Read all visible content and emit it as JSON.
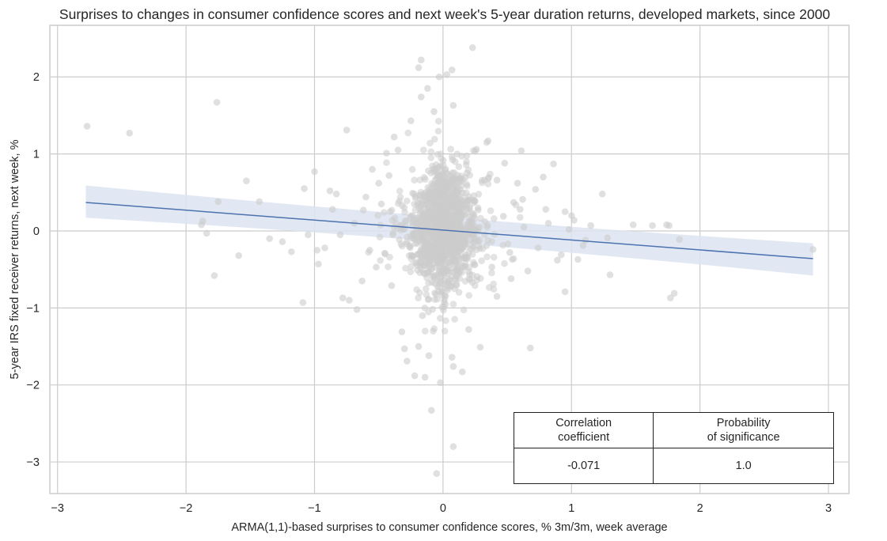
{
  "chart_data": {
    "type": "scatter",
    "title": "Surprises to changes in consumer confidence scores and next week's 5-year duration returns, developed markets, since 2000",
    "xlabel": "ARMA(1,1)-based surprises to consumer confidence scores, % 3m/3m, week average",
    "ylabel": "5-year IRS fixed receiver returns, next week, %",
    "xlim": [
      -3.06,
      3.16
    ],
    "ylim": [
      -3.41,
      2.67
    ],
    "xticks": [
      -3,
      -2,
      -1,
      0,
      1,
      2,
      3
    ],
    "xtick_labels": [
      "−3",
      "−2",
      "−1",
      "0",
      "1",
      "2",
      "3"
    ],
    "yticks": [
      -3,
      -2,
      -1,
      0,
      1,
      2
    ],
    "ytick_labels": [
      "−3",
      "−2",
      "−1",
      "0",
      "1",
      "2"
    ],
    "grid": true,
    "colors": {
      "points": "#cccccc",
      "regression_line": "#4c72b0",
      "confidence_band": "#dde4f1",
      "grid": "#cccccc",
      "frame": "#cccccc"
    },
    "regression": {
      "x_range": [
        -2.78,
        2.88
      ],
      "y_at_x_start": 0.37,
      "y_at_x_end": -0.36,
      "ci_at_x_start": [
        0.17,
        0.59
      ],
      "ci_at_x_end": [
        -0.58,
        -0.16
      ]
    },
    "dense_cluster": {
      "description": "approx. 1,300 weekly observations concentrated around x=0",
      "count": 1300,
      "x_center": 0.0,
      "x_spread": 0.09,
      "y_center": 0.05,
      "y_spread": 0.42
    },
    "outlier_points": [
      {
        "x": -2.77,
        "y": 1.36
      },
      {
        "x": -2.44,
        "y": 1.27
      },
      {
        "x": -1.76,
        "y": 1.67
      },
      {
        "x": -1.53,
        "y": 0.65
      },
      {
        "x": -1.75,
        "y": 0.38
      },
      {
        "x": -1.87,
        "y": 0.13
      },
      {
        "x": -1.84,
        "y": -0.03
      },
      {
        "x": -1.78,
        "y": -0.58
      },
      {
        "x": -1.59,
        "y": -0.32
      },
      {
        "x": -1.88,
        "y": 0.08
      },
      {
        "x": -1.43,
        "y": 0.38
      },
      {
        "x": -1.35,
        "y": -0.1
      },
      {
        "x": -1.25,
        "y": -0.14
      },
      {
        "x": -1.18,
        "y": -0.27
      },
      {
        "x": -1.09,
        "y": -0.93
      },
      {
        "x": -1.08,
        "y": 0.55
      },
      {
        "x": -1.0,
        "y": 0.77
      },
      {
        "x": -0.98,
        "y": -0.25
      },
      {
        "x": -0.97,
        "y": -0.43
      },
      {
        "x": -1.05,
        "y": -0.05
      },
      {
        "x": -0.92,
        "y": -0.22
      },
      {
        "x": -0.88,
        "y": 0.52
      },
      {
        "x": -0.83,
        "y": 0.48
      },
      {
        "x": -0.78,
        "y": -0.87
      },
      {
        "x": -0.73,
        "y": -0.9
      },
      {
        "x": -0.75,
        "y": 1.31
      },
      {
        "x": -0.67,
        "y": -1.02
      },
      {
        "x": -0.62,
        "y": 0.27
      },
      {
        "x": -0.6,
        "y": 0.44
      },
      {
        "x": -0.55,
        "y": 0.8
      },
      {
        "x": -0.5,
        "y": 0.62
      },
      {
        "x": -0.45,
        "y": -0.3
      },
      {
        "x": -0.44,
        "y": 1.01
      },
      {
        "x": -0.38,
        "y": 1.22
      },
      {
        "x": -0.35,
        "y": 1.05
      },
      {
        "x": -0.4,
        "y": -0.71
      },
      {
        "x": -0.32,
        "y": -1.31
      },
      {
        "x": -0.3,
        "y": -1.53
      },
      {
        "x": -0.28,
        "y": -1.69
      },
      {
        "x": -0.25,
        "y": 1.43
      },
      {
        "x": -0.22,
        "y": -1.88
      },
      {
        "x": -0.19,
        "y": -1.5
      },
      {
        "x": -0.17,
        "y": 1.74
      },
      {
        "x": -0.16,
        "y": -1.1
      },
      {
        "x": -0.14,
        "y": -1.9
      },
      {
        "x": -0.12,
        "y": 1.85
      },
      {
        "x": -0.11,
        "y": -1.62
      },
      {
        "x": -0.09,
        "y": -2.33
      },
      {
        "x": -0.07,
        "y": 1.55
      },
      {
        "x": -0.03,
        "y": 2.0
      },
      {
        "x": -0.02,
        "y": -1.97
      },
      {
        "x": -0.05,
        "y": -3.15
      },
      {
        "x": -0.19,
        "y": 2.12
      },
      {
        "x": -0.17,
        "y": 2.22
      },
      {
        "x": 0.03,
        "y": 2.03
      },
      {
        "x": 0.07,
        "y": 2.09
      },
      {
        "x": 0.23,
        "y": 2.38
      },
      {
        "x": 0.08,
        "y": 1.63
      },
      {
        "x": 0.07,
        "y": -1.64
      },
      {
        "x": 0.08,
        "y": -2.8
      },
      {
        "x": 0.08,
        "y": -1.76
      },
      {
        "x": 0.15,
        "y": -1.83
      },
      {
        "x": 0.2,
        "y": -1.28
      },
      {
        "x": 0.29,
        "y": -1.51
      },
      {
        "x": 0.26,
        "y": 1.06
      },
      {
        "x": 0.35,
        "y": 1.17
      },
      {
        "x": 0.42,
        "y": 0.66
      },
      {
        "x": 0.48,
        "y": 0.88
      },
      {
        "x": 0.53,
        "y": -0.62
      },
      {
        "x": 0.55,
        "y": 0.37
      },
      {
        "x": 0.6,
        "y": 0.28
      },
      {
        "x": 0.63,
        "y": 0.05
      },
      {
        "x": 0.62,
        "y": 0.41
      },
      {
        "x": 0.66,
        "y": -0.52
      },
      {
        "x": 0.68,
        "y": -1.52
      },
      {
        "x": 0.72,
        "y": 0.54
      },
      {
        "x": 0.74,
        "y": -0.22
      },
      {
        "x": 0.78,
        "y": 0.7
      },
      {
        "x": 0.8,
        "y": 0.28
      },
      {
        "x": 0.82,
        "y": 0.1
      },
      {
        "x": 0.86,
        "y": 0.87
      },
      {
        "x": 0.89,
        "y": -0.38
      },
      {
        "x": 0.92,
        "y": -0.31
      },
      {
        "x": 0.95,
        "y": 0.25
      },
      {
        "x": 0.98,
        "y": 0.02
      },
      {
        "x": 1.0,
        "y": 0.2
      },
      {
        "x": 1.02,
        "y": 0.14
      },
      {
        "x": 1.05,
        "y": -0.37
      },
      {
        "x": 1.09,
        "y": -0.19
      },
      {
        "x": 1.11,
        "y": -0.12
      },
      {
        "x": 1.15,
        "y": 0.07
      },
      {
        "x": 1.24,
        "y": 0.48
      },
      {
        "x": 1.28,
        "y": -0.09
      },
      {
        "x": 1.3,
        "y": -0.57
      },
      {
        "x": 1.48,
        "y": 0.08
      },
      {
        "x": 1.63,
        "y": 0.07
      },
      {
        "x": 1.74,
        "y": 0.08
      },
      {
        "x": 1.76,
        "y": 0.07
      },
      {
        "x": 1.77,
        "y": -0.87
      },
      {
        "x": 1.8,
        "y": -0.81
      },
      {
        "x": 1.84,
        "y": -0.11
      },
      {
        "x": 2.88,
        "y": -0.24
      },
      {
        "x": 0.95,
        "y": -0.79
      },
      {
        "x": 0.61,
        "y": 1.04
      },
      {
        "x": -0.57,
        "y": -0.25
      },
      {
        "x": -0.63,
        "y": -0.65
      },
      {
        "x": -0.48,
        "y": 0.35
      },
      {
        "x": -0.52,
        "y": -0.47
      },
      {
        "x": 0.42,
        "y": -0.85
      },
      {
        "x": 0.38,
        "y": -0.47
      },
      {
        "x": 0.47,
        "y": 0.19
      },
      {
        "x": -0.69,
        "y": 0.1
      },
      {
        "x": -0.8,
        "y": -0.05
      },
      {
        "x": -0.86,
        "y": 0.28
      },
      {
        "x": 0.52,
        "y": -0.28
      },
      {
        "x": 0.58,
        "y": 0.62
      },
      {
        "x": -0.42,
        "y": 0.72
      }
    ]
  },
  "stats_table": {
    "headers": [
      "Correlation\ncoefficient",
      "Probability\nof significance"
    ],
    "values": [
      "-0.071",
      "1.0"
    ]
  }
}
